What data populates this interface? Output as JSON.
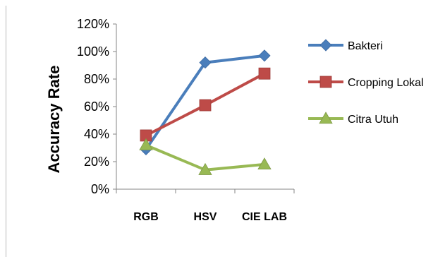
{
  "chart_data": {
    "type": "line",
    "title": "",
    "xlabel": "",
    "ylabel": "Accuracy Rate",
    "categories": [
      "RGB",
      "HSV",
      "CIE LAB"
    ],
    "ylim": [
      0,
      120
    ],
    "yticks": [
      0,
      20,
      40,
      60,
      80,
      100,
      120
    ],
    "ytick_labels": [
      "0%",
      "20%",
      "40%",
      "60%",
      "80%",
      "100%",
      "120%"
    ],
    "grid": false,
    "legend_position": "right",
    "series": [
      {
        "name": "Bakteri",
        "values": [
          29,
          92,
          97
        ],
        "color": "#4a7ebb",
        "marker": "diamond"
      },
      {
        "name": "Cropping Lokal",
        "values": [
          39,
          61,
          84
        ],
        "color": "#be4b48",
        "marker": "square"
      },
      {
        "name": "Citra Utuh",
        "values": [
          32,
          14,
          18
        ],
        "color": "#98b954",
        "marker": "triangle"
      }
    ]
  }
}
